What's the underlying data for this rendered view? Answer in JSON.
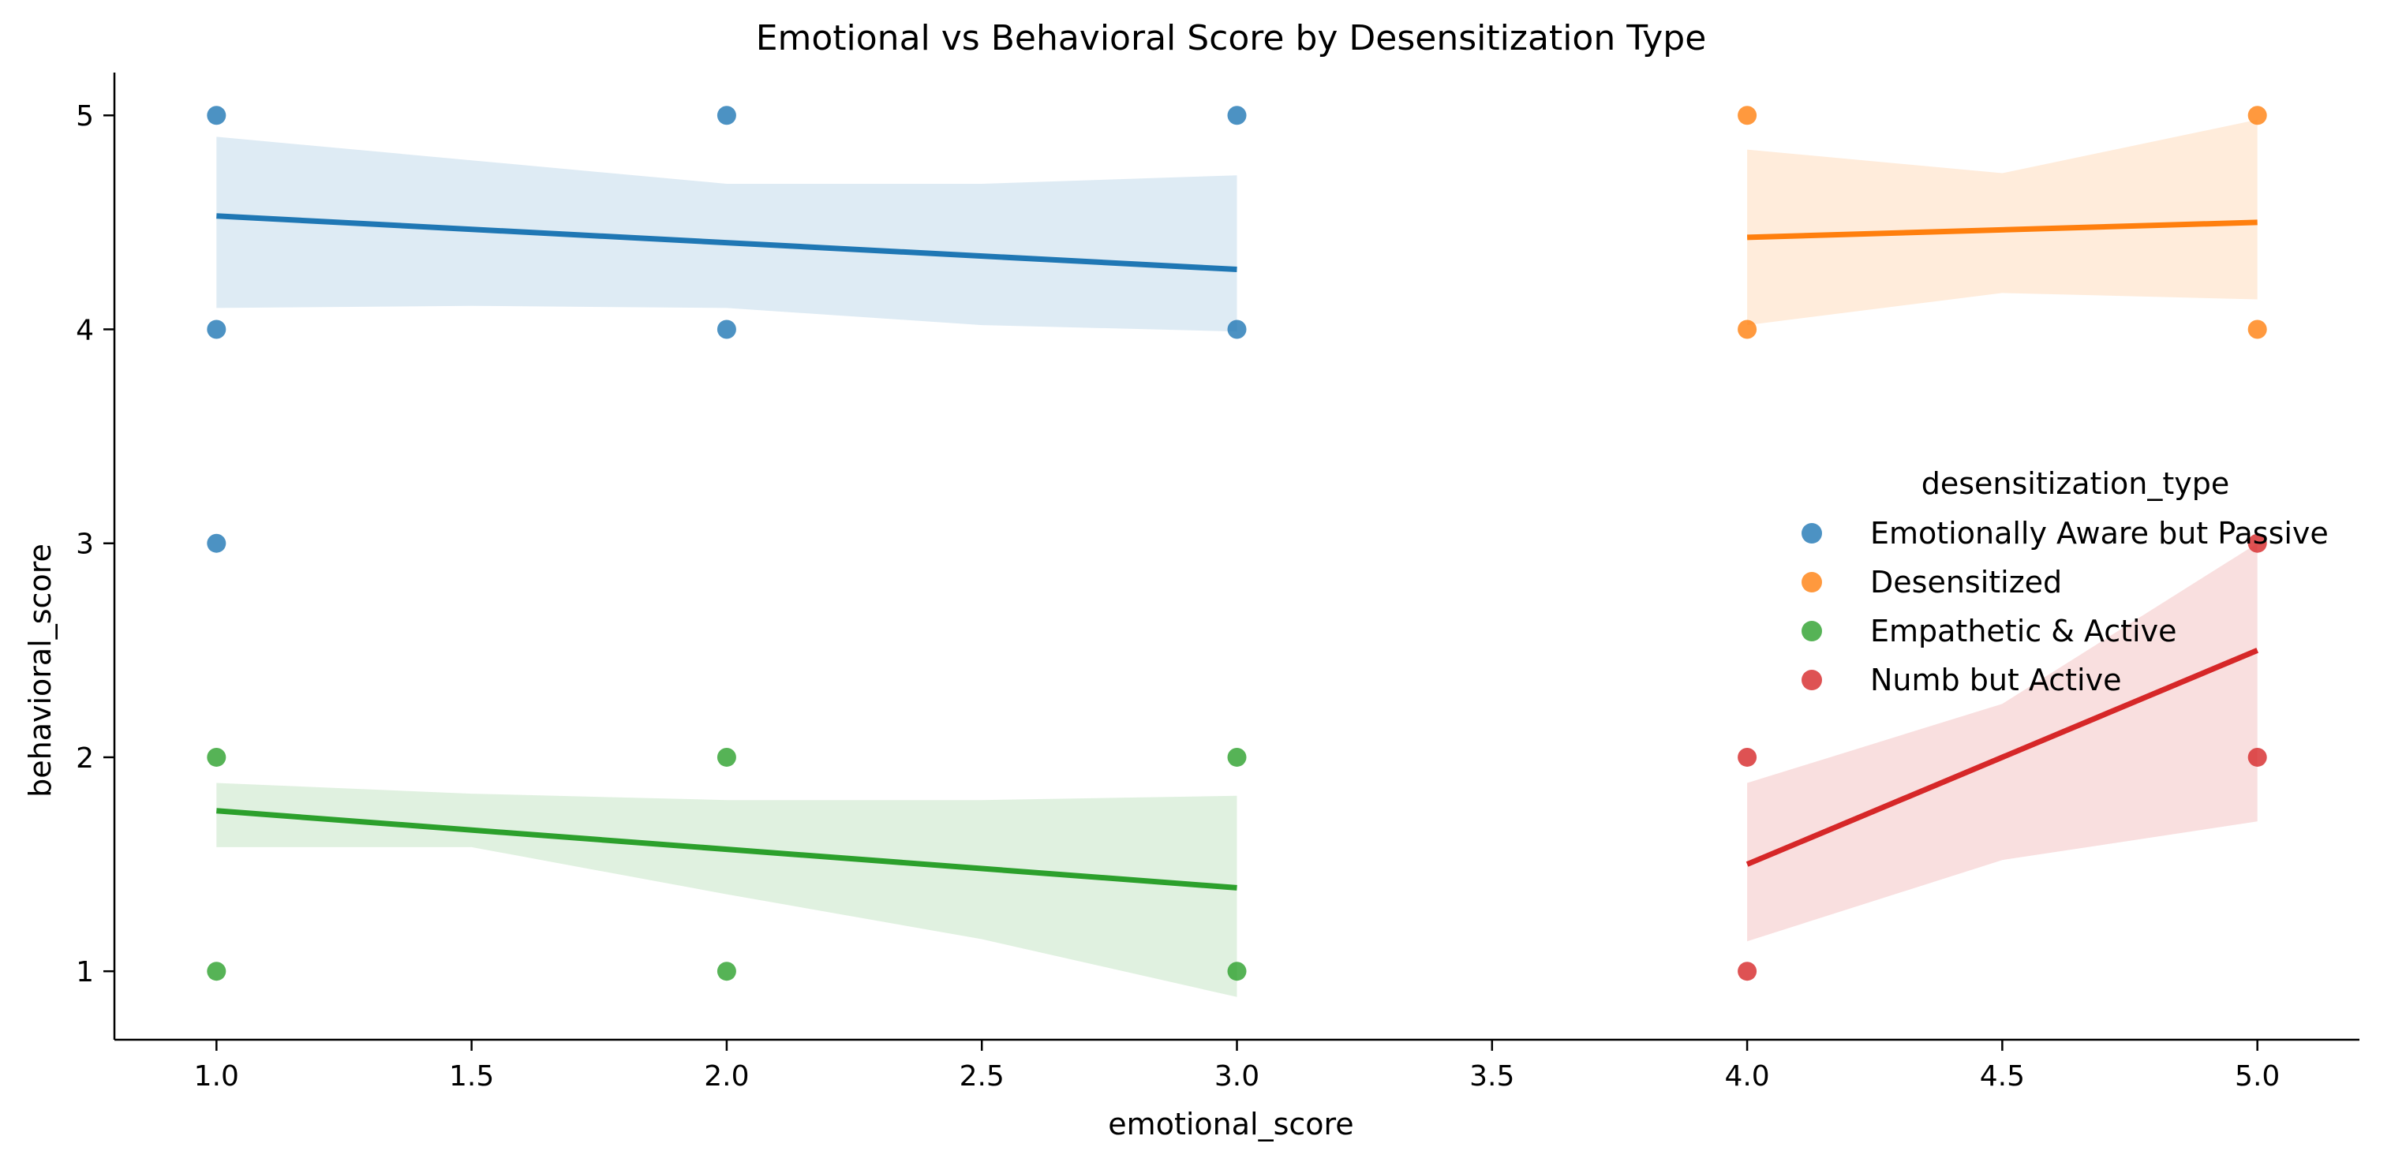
{
  "chart_data": {
    "type": "scatter",
    "title": "Emotional vs Behavioral Score by Desensitization Type",
    "xlabel": "emotional_score",
    "ylabel": "behavioral_score",
    "xlim": [
      0.8,
      5.2
    ],
    "ylim": [
      0.68,
      5.2
    ],
    "x_ticks": [
      "1.0",
      "1.5",
      "2.0",
      "2.5",
      "3.0",
      "3.5",
      "4.0",
      "4.5",
      "5.0"
    ],
    "y_ticks": [
      "1",
      "2",
      "3",
      "4",
      "5"
    ],
    "grid": false,
    "legend": {
      "title": "desensitization_type",
      "placement": "center-right"
    },
    "series": [
      {
        "name": "Emotionally Aware but Passive",
        "color": "#1f77b4",
        "points": [
          [
            1,
            5
          ],
          [
            1,
            4
          ],
          [
            1,
            3
          ],
          [
            2,
            5
          ],
          [
            2,
            4
          ],
          [
            3,
            5
          ],
          [
            3,
            4
          ]
        ],
        "fit": {
          "x": [
            1,
            3
          ],
          "y": [
            4.53,
            4.28
          ]
        },
        "band": {
          "x": [
            1,
            1.5,
            2,
            2.5,
            3
          ],
          "upper": [
            4.9,
            4.79,
            4.68,
            4.68,
            4.72
          ],
          "lower": [
            4.1,
            4.11,
            4.1,
            4.02,
            3.99
          ]
        }
      },
      {
        "name": "Desensitized",
        "color": "#ff7f0e",
        "points": [
          [
            4,
            5
          ],
          [
            4,
            4
          ],
          [
            5,
            5
          ],
          [
            5,
            4
          ]
        ],
        "fit": {
          "x": [
            4,
            5
          ],
          "y": [
            4.43,
            4.5
          ]
        },
        "band": {
          "x": [
            4,
            4.5,
            5
          ],
          "upper": [
            4.84,
            4.73,
            4.98
          ],
          "lower": [
            4.02,
            4.17,
            4.14
          ]
        }
      },
      {
        "name": "Empathetic & Active",
        "color": "#2ca02c",
        "points": [
          [
            1,
            2
          ],
          [
            1,
            1
          ],
          [
            2,
            2
          ],
          [
            2,
            1
          ],
          [
            3,
            2
          ],
          [
            3,
            1
          ]
        ],
        "fit": {
          "x": [
            1,
            3
          ],
          "y": [
            1.75,
            1.39
          ]
        },
        "band": {
          "x": [
            1,
            1.5,
            2,
            2.5,
            3
          ],
          "upper": [
            1.88,
            1.83,
            1.8,
            1.8,
            1.82
          ],
          "lower": [
            1.58,
            1.58,
            1.36,
            1.15,
            0.88
          ]
        }
      },
      {
        "name": "Numb but Active",
        "color": "#d62728",
        "points": [
          [
            4,
            2
          ],
          [
            4,
            1
          ],
          [
            5,
            3
          ],
          [
            5,
            2
          ]
        ],
        "fit": {
          "x": [
            4,
            5
          ],
          "y": [
            1.5,
            2.5
          ]
        },
        "band": {
          "x": [
            4,
            4.5,
            5
          ],
          "upper": [
            1.88,
            2.25,
            3.0
          ],
          "lower": [
            1.14,
            1.52,
            1.7
          ]
        }
      }
    ]
  }
}
